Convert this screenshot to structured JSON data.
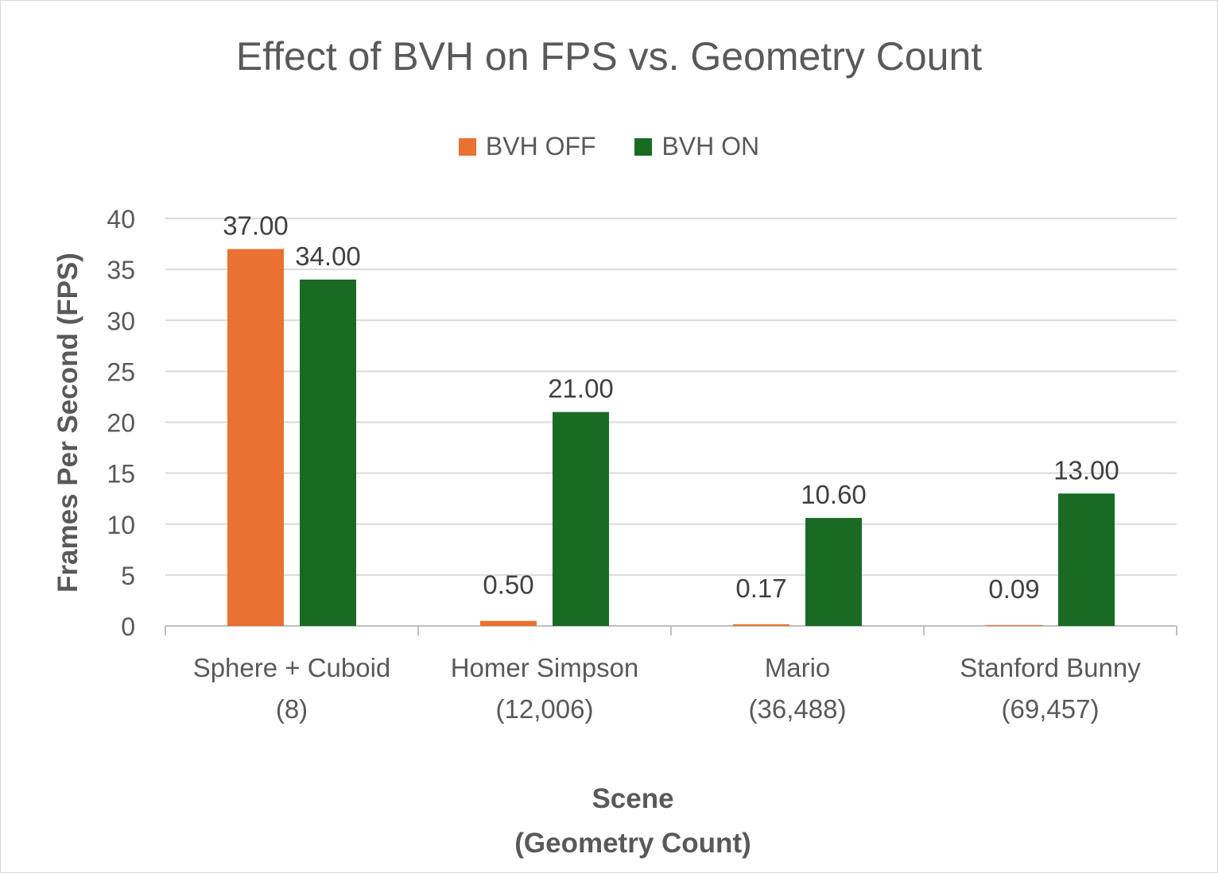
{
  "chart_data": {
    "type": "bar",
    "title": "Effect of BVH on FPS vs. Geometry Count",
    "xlabel": [
      "Scene",
      "(Geometry Count)"
    ],
    "ylabel": "Frames Per Second (FPS)",
    "categories": [
      [
        "Sphere + Cuboid",
        "(8)"
      ],
      [
        "Homer Simpson",
        "(12,006)"
      ],
      [
        "Mario",
        "(36,488)"
      ],
      [
        "Stanford Bunny",
        "(69,457)"
      ]
    ],
    "series": [
      {
        "name": "BVH OFF",
        "color": "#E97132",
        "values": [
          37.0,
          0.5,
          0.17,
          0.09
        ],
        "labels": [
          "37.00",
          "0.50",
          "0.17",
          "0.09"
        ]
      },
      {
        "name": "BVH ON",
        "color": "#196B24",
        "values": [
          34.0,
          21.0,
          10.6,
          13.0
        ],
        "labels": [
          "34.00",
          "21.00",
          "10.60",
          "13.00"
        ]
      }
    ],
    "ylim": [
      0,
      40
    ],
    "yticks": [
      0,
      5,
      10,
      15,
      20,
      25,
      30,
      35,
      40
    ],
    "grid": true,
    "legend_position": "top"
  }
}
